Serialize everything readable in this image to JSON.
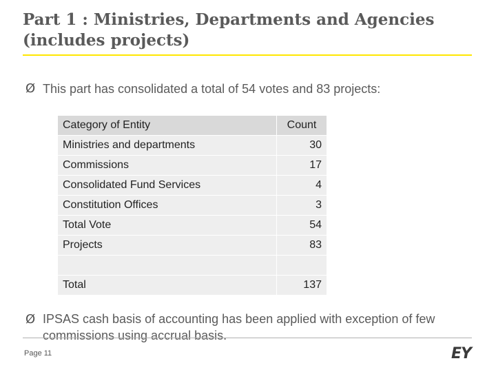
{
  "title": {
    "line1": "Part 1 : Ministries, Departments and Agencies",
    "line2": "(includes projects)"
  },
  "bullets": [
    {
      "symbol": "Ø",
      "text": "This part has consolidated a total of 54 votes and 83 projects:"
    },
    {
      "symbol": "Ø",
      "text": "IPSAS cash basis of accounting has been applied with exception of few commissions using accrual basis."
    }
  ],
  "table": {
    "headers": [
      "Category of Entity",
      "Count"
    ],
    "rows": [
      [
        "Ministries and departments",
        "30"
      ],
      [
        "Commissions",
        "17"
      ],
      [
        "Consolidated Fund Services",
        "4"
      ],
      [
        "Constitution Offices",
        "3"
      ],
      [
        "Total Vote",
        "54"
      ],
      [
        "Projects",
        "83"
      ],
      [
        "",
        ""
      ],
      [
        "Total",
        "137"
      ]
    ]
  },
  "footer": {
    "page": "Page 11",
    "logo": "EY"
  },
  "colors": {
    "accent": "#ffe600",
    "header_cell": "#d9d9d9",
    "body_cell": "#eeeeee"
  }
}
